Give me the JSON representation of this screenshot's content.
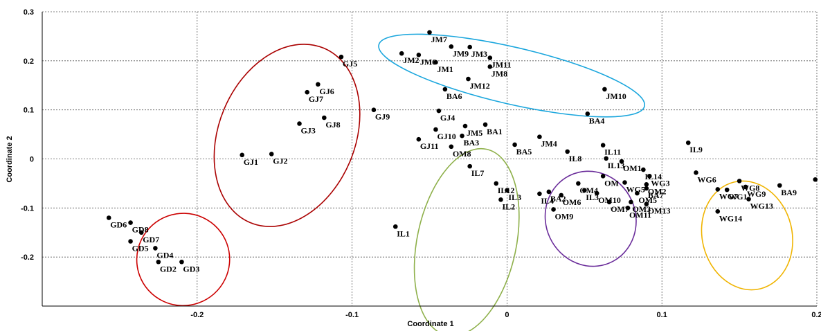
{
  "chart_data": {
    "type": "scatter",
    "xlabel": "Coordinate 1",
    "ylabel": "Coordinate 2",
    "xlim": [
      -0.3,
      0.2
    ],
    "ylim": [
      -0.3,
      0.3
    ],
    "x_ticks": [
      -0.2,
      -0.1,
      0,
      0.1,
      0.2
    ],
    "y_ticks": [
      0.3,
      0.2,
      0.1,
      0,
      -0.1,
      -0.2
    ],
    "x_tick_labels": [
      "-0.2",
      "-0.1",
      "0",
      "0.1",
      "0.2"
    ],
    "y_tick_labels": [
      "0.3",
      "0.2",
      "0.1",
      "0",
      "-0.1",
      "-0.2"
    ],
    "grid": true,
    "points": [
      {
        "label": "JM7",
        "x": -0.05,
        "y": 0.258
      },
      {
        "label": "JM9",
        "x": -0.036,
        "y": 0.229
      },
      {
        "label": "JM3",
        "x": -0.024,
        "y": 0.228
      },
      {
        "label": "JM2",
        "x": -0.068,
        "y": 0.215
      },
      {
        "label": "JM6",
        "x": -0.057,
        "y": 0.212
      },
      {
        "label": "JM1",
        "x": -0.046,
        "y": 0.197
      },
      {
        "label": "JM11",
        "x": -0.011,
        "y": 0.206
      },
      {
        "label": "JM8",
        "x": -0.011,
        "y": 0.188
      },
      {
        "label": "JM12",
        "x": -0.025,
        "y": 0.163
      },
      {
        "label": "BA6",
        "x": -0.04,
        "y": 0.142
      },
      {
        "label": "JM10",
        "x": 0.063,
        "y": 0.142
      },
      {
        "label": "BA4",
        "x": 0.052,
        "y": 0.092
      },
      {
        "label": "GJ5",
        "x": -0.107,
        "y": 0.208
      },
      {
        "label": "GJ6",
        "x": -0.122,
        "y": 0.152
      },
      {
        "label": "GJ7",
        "x": -0.129,
        "y": 0.136
      },
      {
        "label": "GJ9",
        "x": -0.086,
        "y": 0.1
      },
      {
        "label": "GJ8",
        "x": -0.118,
        "y": 0.084
      },
      {
        "label": "GJ3",
        "x": -0.134,
        "y": 0.072
      },
      {
        "label": "GJ1",
        "x": -0.171,
        "y": 0.008
      },
      {
        "label": "GJ2",
        "x": -0.152,
        "y": 0.01
      },
      {
        "label": "GJ4",
        "x": -0.044,
        "y": 0.098
      },
      {
        "label": "BA1",
        "x": -0.014,
        "y": 0.07
      },
      {
        "label": "JM5",
        "x": -0.027,
        "y": 0.067
      },
      {
        "label": "GJ10",
        "x": -0.046,
        "y": 0.06
      },
      {
        "label": "BA3",
        "x": -0.029,
        "y": 0.047
      },
      {
        "label": "GJ11",
        "x": -0.057,
        "y": 0.04
      },
      {
        "label": "OM8",
        "x": -0.036,
        "y": 0.025
      },
      {
        "label": "BA5",
        "x": 0.005,
        "y": 0.029
      },
      {
        "label": "JM4",
        "x": 0.021,
        "y": 0.045
      },
      {
        "label": "IL8",
        "x": 0.039,
        "y": 0.015
      },
      {
        "label": "IL11",
        "x": 0.062,
        "y": 0.028
      },
      {
        "label": "IL13",
        "x": 0.064,
        "y": 0.001
      },
      {
        "label": "IL9",
        "x": 0.117,
        "y": 0.033
      },
      {
        "label": "IL7",
        "x": -0.024,
        "y": -0.015
      },
      {
        "label": "IL12",
        "x": -0.007,
        "y": -0.05
      },
      {
        "label": "IL3",
        "x": 0.0,
        "y": -0.064
      },
      {
        "label": "IL2",
        "x": -0.004,
        "y": -0.083
      },
      {
        "label": "IL4",
        "x": 0.021,
        "y": -0.071
      },
      {
        "label": "BA2",
        "x": 0.027,
        "y": -0.067
      },
      {
        "label": "OM6",
        "x": 0.035,
        "y": -0.074
      },
      {
        "label": "OM4",
        "x": 0.046,
        "y": -0.05
      },
      {
        "label": "IL3",
        "x": 0.05,
        "y": -0.064
      },
      {
        "label": "OM10",
        "x": 0.058,
        "y": -0.07
      },
      {
        "label": "OM9",
        "x": 0.03,
        "y": -0.103
      },
      {
        "label": "OM1",
        "x": 0.074,
        "y": -0.005
      },
      {
        "label": "OM",
        "x": 0.062,
        "y": -0.035
      },
      {
        "label": "IL14",
        "x": 0.088,
        "y": -0.022
      },
      {
        "label": "WG3",
        "x": 0.092,
        "y": -0.035
      },
      {
        "label": "WG5",
        "x": 0.076,
        "y": -0.048
      },
      {
        "label": "OM2",
        "x": 0.09,
        "y": -0.052
      },
      {
        "label": "BA7",
        "x": 0.09,
        "y": -0.06
      },
      {
        "label": "OM5",
        "x": 0.084,
        "y": -0.07
      },
      {
        "label": "OM7",
        "x": 0.066,
        "y": -0.088
      },
      {
        "label": "OM3",
        "x": 0.08,
        "y": -0.088
      },
      {
        "label": "OM11",
        "x": 0.078,
        "y": -0.1
      },
      {
        "label": "OM13",
        "x": 0.09,
        "y": -0.092
      },
      {
        "label": "WG6",
        "x": 0.122,
        "y": -0.028
      },
      {
        "label": "WG8",
        "x": 0.15,
        "y": -0.045
      },
      {
        "label": "WG9",
        "x": 0.154,
        "y": -0.057
      },
      {
        "label": "WG7",
        "x": 0.136,
        "y": -0.062
      },
      {
        "label": "WG1",
        "x": 0.142,
        "y": -0.063
      },
      {
        "label": "WG13",
        "x": 0.156,
        "y": -0.082
      },
      {
        "label": "WG14",
        "x": 0.136,
        "y": -0.107
      },
      {
        "label": "BA9",
        "x": 0.176,
        "y": -0.054
      },
      {
        "label": "",
        "x": 0.199,
        "y": -0.042
      },
      {
        "label": "IL1",
        "x": -0.072,
        "y": -0.138
      },
      {
        "label": "GD6",
        "x": -0.257,
        "y": -0.12
      },
      {
        "label": "GD8",
        "x": -0.243,
        "y": -0.13
      },
      {
        "label": "GD7",
        "x": -0.236,
        "y": -0.15
      },
      {
        "label": "GD5",
        "x": -0.243,
        "y": -0.168
      },
      {
        "label": "GD4",
        "x": -0.227,
        "y": -0.182
      },
      {
        "label": "GD2",
        "x": -0.225,
        "y": -0.21
      },
      {
        "label": "GD3",
        "x": -0.21,
        "y": -0.21
      }
    ],
    "ellipses": [
      {
        "color": "#cc0000",
        "cx": -0.209,
        "cy": -0.205,
        "rx": 0.03,
        "ry": 0.094,
        "angle_deg": -20
      },
      {
        "color": "#aa0000",
        "cx": -0.142,
        "cy": 0.048,
        "rx": 0.044,
        "ry": 0.193,
        "angle_deg": 23
      },
      {
        "color": "#1aa6dd",
        "cx": 0.003,
        "cy": 0.17,
        "rx": 0.088,
        "ry": 0.058,
        "angle_deg": 13
      },
      {
        "color": "#8eb04a",
        "cx": -0.026,
        "cy": -0.17,
        "rx": 0.032,
        "ry": 0.194,
        "angle_deg": 12
      },
      {
        "color": "#6a2c9a",
        "cx": 0.054,
        "cy": -0.122,
        "rx": 0.029,
        "ry": 0.098,
        "angle_deg": -25
      },
      {
        "color": "#f0b400",
        "cx": 0.155,
        "cy": -0.156,
        "rx": 0.029,
        "ry": 0.112,
        "angle_deg": -14
      }
    ]
  }
}
